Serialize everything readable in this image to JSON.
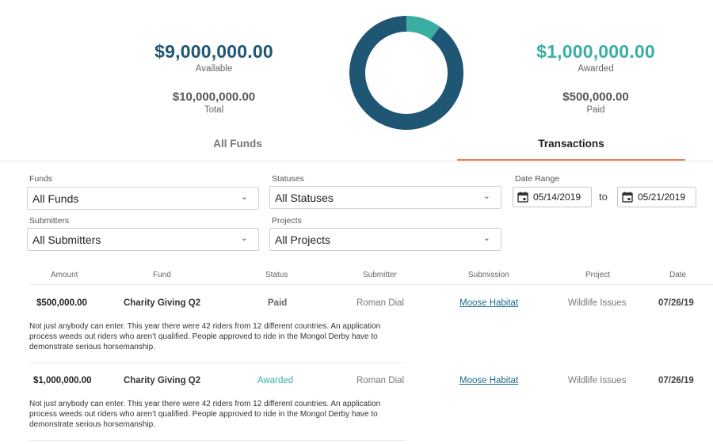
{
  "summary": {
    "available_amount": "$9,000,000.00",
    "available_label": "Available",
    "total_amount": "$10,000,000.00",
    "total_label": "Total",
    "awarded_amount": "$1,000,000.00",
    "awarded_label": "Awarded",
    "paid_amount": "$500,000.00",
    "paid_label": "Paid",
    "donut": {
      "available_fraction": 0.9,
      "awarded_fraction": 0.1,
      "available_color": "#1e5674",
      "awarded_color": "#3aaea3"
    }
  },
  "tabs": [
    {
      "label": "All Funds",
      "active": false
    },
    {
      "label": "Transactions",
      "active": true
    }
  ],
  "accent_color": "#ef7d4f",
  "filters": {
    "funds": {
      "label": "Funds",
      "value": "All Funds"
    },
    "statuses": {
      "label": "Statuses",
      "value": "All Statuses"
    },
    "date_range": {
      "label": "Date Range",
      "from": "05/14/2019",
      "to_label": "to",
      "to": "05/21/2019"
    },
    "submitters": {
      "label": "Submitters",
      "value": "All Submitters"
    },
    "projects": {
      "label": "Projects",
      "value": "All Projects"
    }
  },
  "table": {
    "columns": [
      "Amount",
      "Fund",
      "Status",
      "Submitter",
      "Submission",
      "Project",
      "Date"
    ],
    "rows": [
      {
        "amount": "$500,000.00",
        "fund": "Charity Giving Q2",
        "status": "Paid",
        "submitter": "Roman Dial",
        "submission": "Moose Habitat",
        "project": "Wildlife Issues",
        "date": "07/26/19",
        "description_lines": [
          "Not just anybody can enter. This year there were 42 riders from 12 different countries. An application",
          "process weeds out riders who aren’t qualified. People approved to ride in the Mongol Derby have to",
          "demonstrate serious horsemanship."
        ]
      },
      {
        "amount": "$1,000,000.00",
        "fund": "Charity Giving Q2",
        "status": "Awarded",
        "submitter": "Roman Dial",
        "submission": "Moose Habitat",
        "project": "Wildlife Issues",
        "date": "07/26/19",
        "description_lines": [
          "Not just anybody can enter. This year there were 42 riders from 12 different countries. An application",
          "process weeds out riders who aren’t qualified. People approved to ride in the Mongol Derby have to",
          "demonstrate serious horsemanship."
        ]
      }
    ]
  },
  "icons": {
    "calendar": "calendar-icon",
    "chevron": "chevron-down-icon"
  }
}
